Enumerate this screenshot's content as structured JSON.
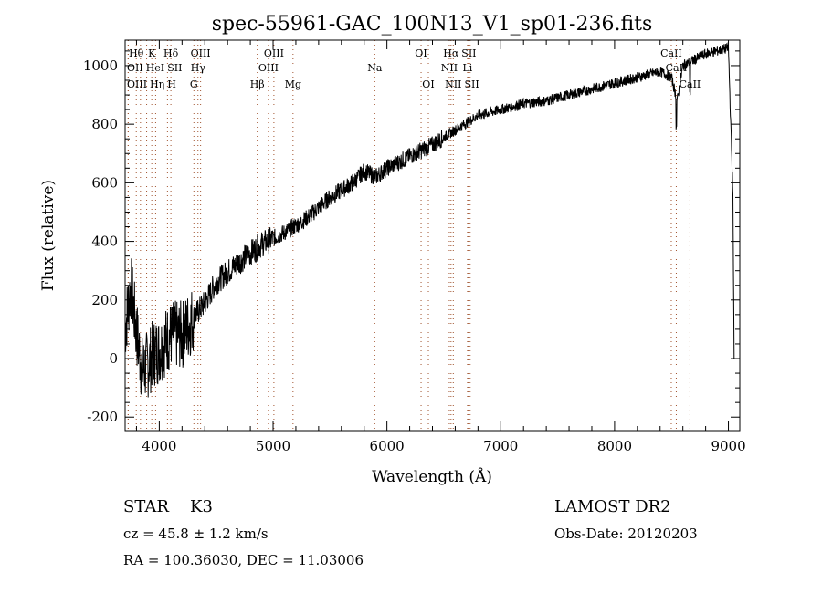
{
  "chart_data": {
    "type": "line",
    "title": "spec-55961-GAC_100N13_V1_sp01-236.fits",
    "xlabel": "Wavelength (Å)",
    "ylabel": "Flux (relative)",
    "xlim": [
      3700,
      9100
    ],
    "ylim": [
      -246,
      1087
    ],
    "xticks": [
      4000,
      5000,
      6000,
      7000,
      8000,
      9000
    ],
    "yticks": [
      -200,
      0,
      200,
      400,
      600,
      800,
      1000
    ],
    "series": [
      {
        "name": "spectrum",
        "color": "#000000",
        "x": [
          3700,
          3750,
          3800,
          3850,
          3900,
          3950,
          4000,
          4100,
          4200,
          4300,
          4400,
          4500,
          4700,
          4900,
          5100,
          5300,
          5500,
          5700,
          5800,
          5900,
          6000,
          6200,
          6400,
          6600,
          6800,
          7000,
          7200,
          7400,
          7600,
          7800,
          8000,
          8200,
          8400,
          8500,
          8550,
          8600,
          8800,
          9000,
          9040,
          9050
        ],
        "y": [
          100,
          250,
          90,
          -40,
          -20,
          20,
          30,
          80,
          80,
          140,
          190,
          260,
          330,
          390,
          430,
          480,
          550,
          600,
          640,
          620,
          650,
          690,
          730,
          780,
          830,
          850,
          870,
          880,
          900,
          920,
          940,
          960,
          980,
          960,
          880,
          1000,
          1040,
          1060,
          560,
          0
        ]
      }
    ],
    "lines_color": "#a0522d",
    "spectral_lines": [
      {
        "label": "Hθ",
        "wl": 3798,
        "row": 1
      },
      {
        "label": "K",
        "wl": 3934,
        "row": 1
      },
      {
        "label": "Hδ",
        "wl": 4102,
        "row": 1
      },
      {
        "label": "OIII",
        "wl": 4363,
        "row": 1
      },
      {
        "label": "OIII",
        "wl": 5007,
        "row": 1
      },
      {
        "label": "OI",
        "wl": 6300,
        "row": 1
      },
      {
        "label": "Hα",
        "wl": 6563,
        "row": 1
      },
      {
        "label": "SII",
        "wl": 6717,
        "row": 1
      },
      {
        "label": "CaII",
        "wl": 8498,
        "row": 1
      },
      {
        "label": "OII",
        "wl": 3727,
        "row": 2
      },
      {
        "label": "HeI",
        "wl": 3889,
        "row": 2
      },
      {
        "label": "SII",
        "wl": 4072,
        "row": 2
      },
      {
        "label": "Hγ",
        "wl": 4340,
        "row": 2
      },
      {
        "label": "OIII",
        "wl": 4959,
        "row": 2
      },
      {
        "label": "Na",
        "wl": 5893,
        "row": 2
      },
      {
        "label": "NII",
        "wl": 6548,
        "row": 2
      },
      {
        "label": "Li",
        "wl": 6708,
        "row": 2
      },
      {
        "label": "CaII",
        "wl": 8542,
        "row": 2
      },
      {
        "label": "OIII",
        "wl": 3727,
        "row": 3
      },
      {
        "label": "Hη",
        "wl": 3835,
        "row": 3
      },
      {
        "label": "H",
        "wl": 3968,
        "row": 3
      },
      {
        "label": "G",
        "wl": 4304,
        "row": 3
      },
      {
        "label": "Hβ",
        "wl": 4861,
        "row": 3
      },
      {
        "label": "Mg",
        "wl": 5175,
        "row": 3
      },
      {
        "label": "OI",
        "wl": 6364,
        "row": 3
      },
      {
        "label": "NII",
        "wl": 6583,
        "row": 3
      },
      {
        "label": "SII",
        "wl": 6731,
        "row": 3
      },
      {
        "label": "CaII",
        "wl": 8662,
        "row": 3
      }
    ]
  },
  "info": {
    "class": "STAR",
    "subclass": "K3",
    "cz": "cz = 45.8 ± 1.2 km/s",
    "coords": "RA = 100.36030, DEC =  11.03006",
    "survey": "LAMOST DR2",
    "obsdate": "Obs-Date: 20120203"
  }
}
